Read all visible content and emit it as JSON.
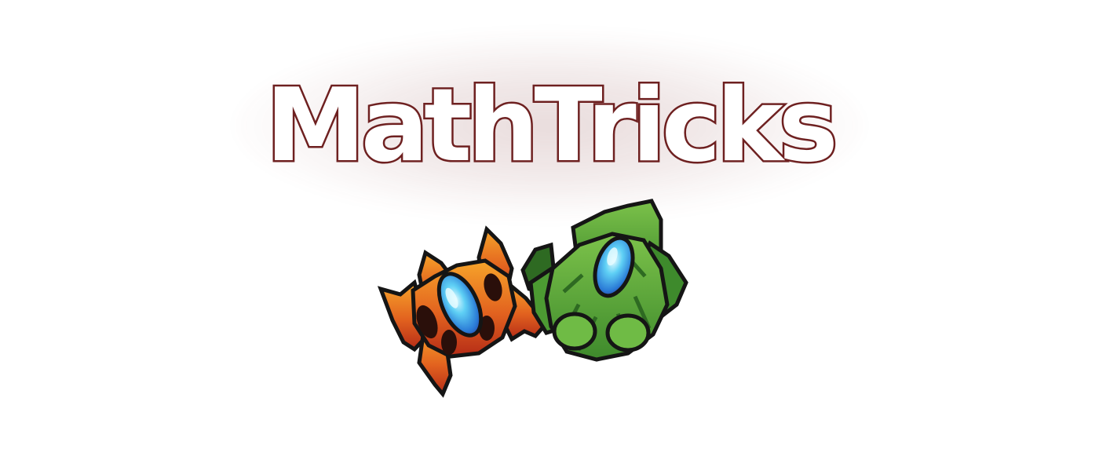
{
  "title": "MathTricks",
  "colors": {
    "title_fill": "#ffffff",
    "title_stroke": "#6e2020",
    "glow": "#782828",
    "fire_orange": "#f08a1e",
    "fire_red": "#c8341a",
    "leaf_green": "#5aa83a",
    "leaf_dark": "#2e6a22",
    "crystal_blue": "#3fb8ea",
    "crystal_core": "#e6fbff",
    "outline": "#151515"
  },
  "artwork": {
    "left": "fire-crystal-emblem",
    "right": "leaf-crystal-emblem"
  }
}
